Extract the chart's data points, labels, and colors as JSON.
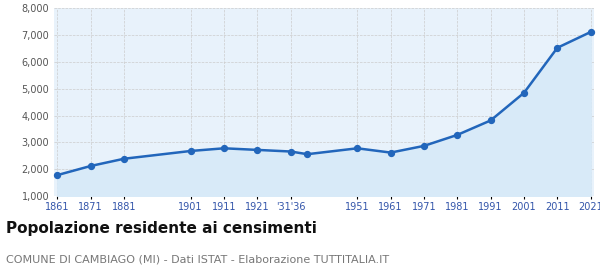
{
  "years": [
    1861,
    1871,
    1881,
    1901,
    1911,
    1921,
    1931,
    1936,
    1951,
    1961,
    1971,
    1981,
    1991,
    2001,
    2011,
    2021
  ],
  "population": [
    1780,
    2120,
    2390,
    2680,
    2780,
    2720,
    2660,
    2560,
    2780,
    2620,
    2870,
    3280,
    3820,
    4850,
    6530,
    7120
  ],
  "ylim": [
    1000,
    8000
  ],
  "yticks": [
    1000,
    2000,
    3000,
    4000,
    5000,
    6000,
    7000,
    8000
  ],
  "x_tick_positions": [
    1861,
    1871,
    1881,
    1901,
    1911,
    1921,
    1931,
    1951,
    1961,
    1971,
    1981,
    1991,
    2001,
    2011,
    2021
  ],
  "x_tick_labels": [
    "1861",
    "1871",
    "1881",
    "1901",
    "1911",
    "1921",
    "'31'36",
    "1951",
    "1961",
    "1971",
    "1981",
    "1991",
    "2001",
    "2011",
    "2021"
  ],
  "line_color": "#2266bb",
  "fill_color": "#d8eaf8",
  "marker_color": "#2266bb",
  "grid_color": "#cccccc",
  "background_color": "#e8f2fb",
  "title": "Popolazione residente ai censimenti",
  "subtitle": "COMUNE DI CAMBIAGO (MI) - Dati ISTAT - Elaborazione TUTTITALIA.IT",
  "title_fontsize": 11,
  "subtitle_fontsize": 8,
  "tick_label_color": "#3355aa",
  "ytick_label_color": "#555555"
}
